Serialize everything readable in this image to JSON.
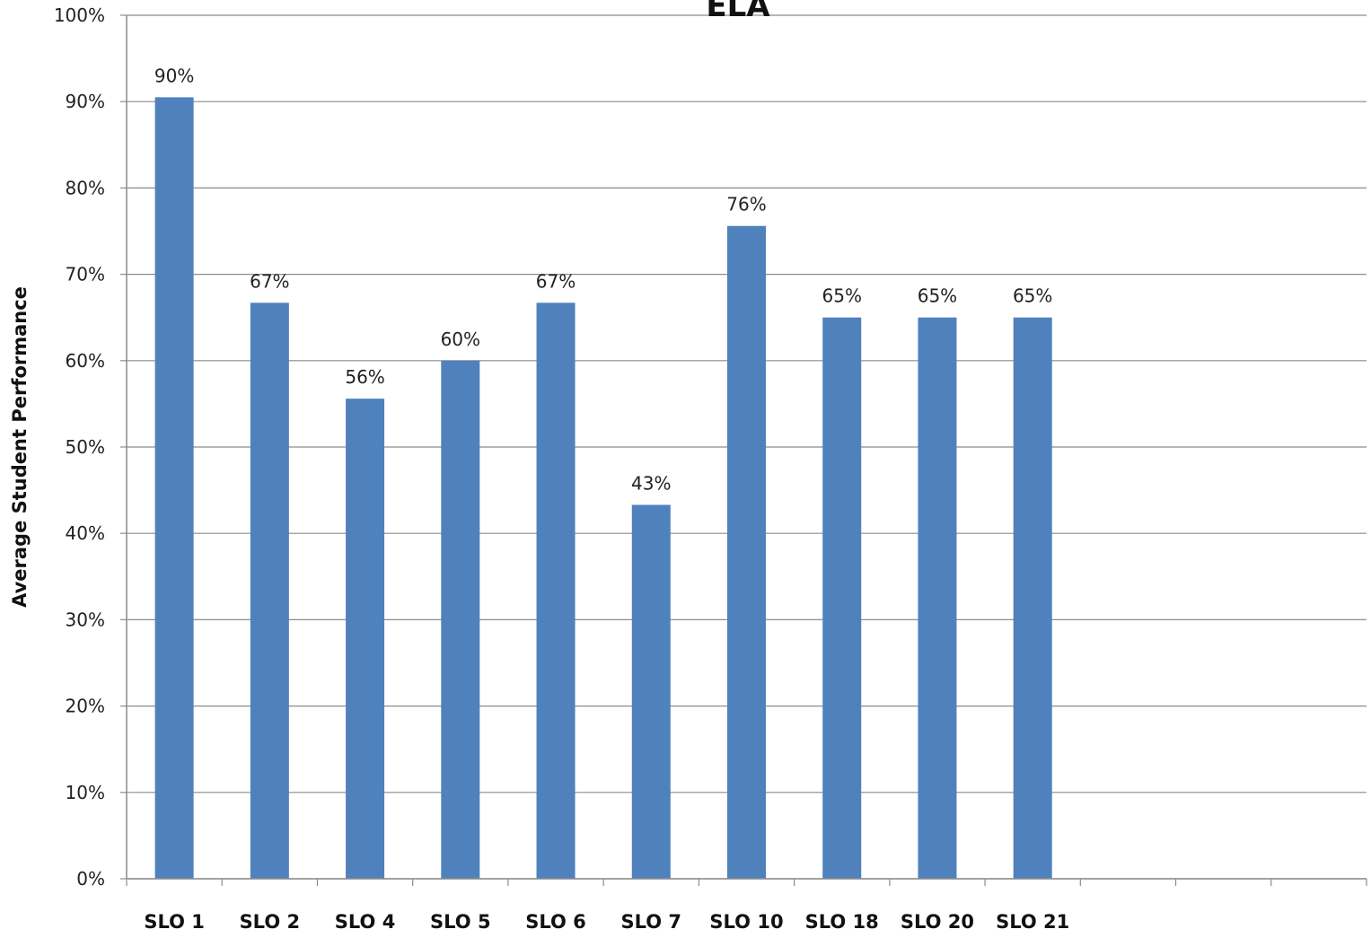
{
  "chart_data": {
    "type": "bar",
    "title": "ELA",
    "xlabel": "",
    "ylabel": "Average Student Performance",
    "categories": [
      "SLO 1",
      "SLO 2",
      "SLO 4",
      "SLO 5",
      "SLO 6",
      "SLO 7",
      "SLO 10",
      "SLO 18",
      "SLO 20",
      "SLO 21",
      "",
      "",
      ""
    ],
    "values": [
      90.5,
      66.7,
      55.6,
      60.0,
      66.7,
      43.3,
      75.6,
      65.0,
      65.0,
      65.0,
      null,
      null,
      null
    ],
    "data_labels": [
      "90%",
      "67%",
      "56%",
      "60%",
      "67%",
      "43%",
      "76%",
      "65%",
      "65%",
      "65%",
      "",
      "",
      ""
    ],
    "ylim": [
      0,
      100
    ],
    "yticks": [
      "0%",
      "10%",
      "20%",
      "30%",
      "40%",
      "50%",
      "60%",
      "70%",
      "80%",
      "90%",
      "100%"
    ],
    "grid": true,
    "legend": "none",
    "colors": {
      "bar": "#4F81BD",
      "grid": "#8c8c8c",
      "axis": "#8c8c8c"
    }
  }
}
